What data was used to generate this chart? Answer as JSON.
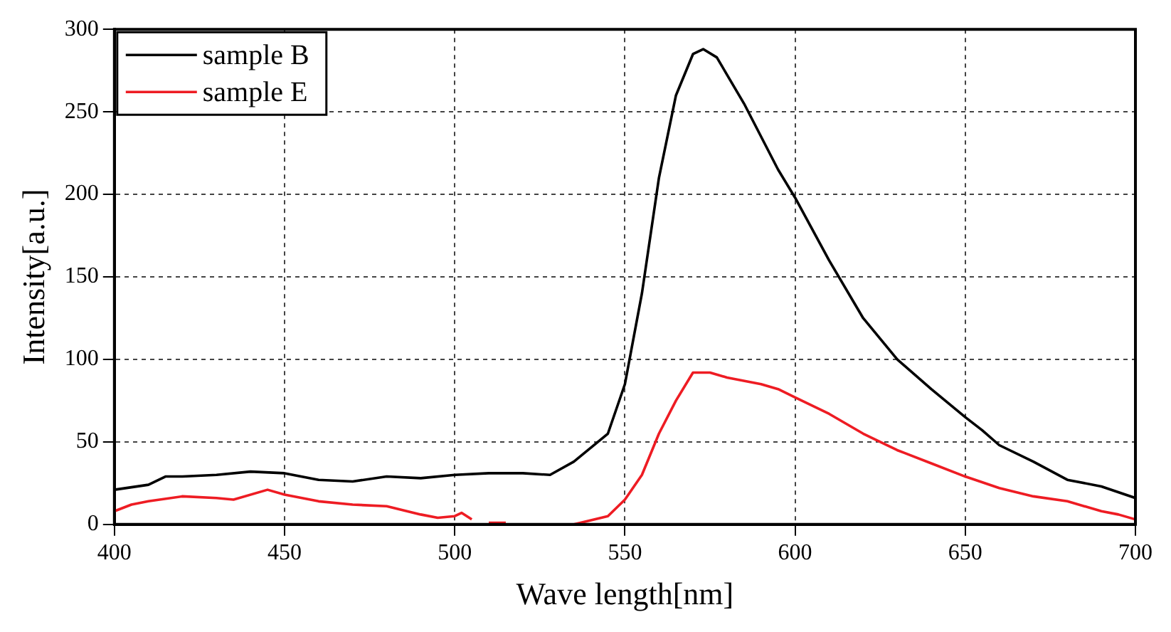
{
  "chart_data": {
    "type": "line",
    "xlabel": "Wave length[nm]",
    "ylabel": "Intensity[a.u.]",
    "xlim": [
      400,
      700
    ],
    "xticks": [
      400,
      450,
      500,
      550,
      600,
      650,
      700
    ],
    "ylim": [
      0,
      300
    ],
    "yticks": [
      0,
      50,
      100,
      150,
      200,
      250,
      300
    ],
    "grid": true,
    "legend": "top left",
    "marker": "none",
    "line_style": "solid",
    "series": [
      {
        "name": "sample B",
        "color": "#000000",
        "x": [
          400,
          410,
          415,
          420,
          430,
          440,
          450,
          460,
          470,
          480,
          490,
          500,
          510,
          520,
          528,
          535,
          545,
          550,
          555,
          560,
          565,
          570,
          573,
          577,
          585,
          595,
          600,
          610,
          620,
          630,
          640,
          650,
          655,
          660,
          670,
          680,
          690,
          700
        ],
        "values": [
          21,
          24,
          29,
          29,
          30,
          32,
          31,
          27,
          26,
          29,
          28,
          30,
          31,
          31,
          30,
          38,
          55,
          85,
          140,
          210,
          260,
          285,
          288,
          283,
          255,
          215,
          198,
          160,
          125,
          100,
          82,
          65,
          57,
          48,
          38,
          27,
          23,
          16
        ]
      },
      {
        "name": "sample E",
        "color": "#ee1c23",
        "x": [
          400,
          405,
          410,
          420,
          430,
          435,
          445,
          450,
          460,
          470,
          480,
          490,
          495,
          500,
          502,
          505,
          507,
          510,
          515,
          517,
          535,
          545,
          550,
          555,
          560,
          565,
          570,
          575,
          580,
          590,
          595,
          600,
          610,
          620,
          630,
          640,
          650,
          660,
          670,
          680,
          690,
          695,
          700
        ],
        "values": [
          8,
          12,
          14,
          17,
          16,
          15,
          21,
          18,
          14,
          12,
          11,
          6,
          4,
          5,
          7,
          3,
          null,
          1,
          1,
          null,
          0,
          5,
          15,
          30,
          55,
          75,
          92,
          92,
          89,
          85,
          82,
          77,
          67,
          55,
          45,
          37,
          29,
          22,
          17,
          14,
          8,
          6,
          3
        ]
      }
    ]
  }
}
